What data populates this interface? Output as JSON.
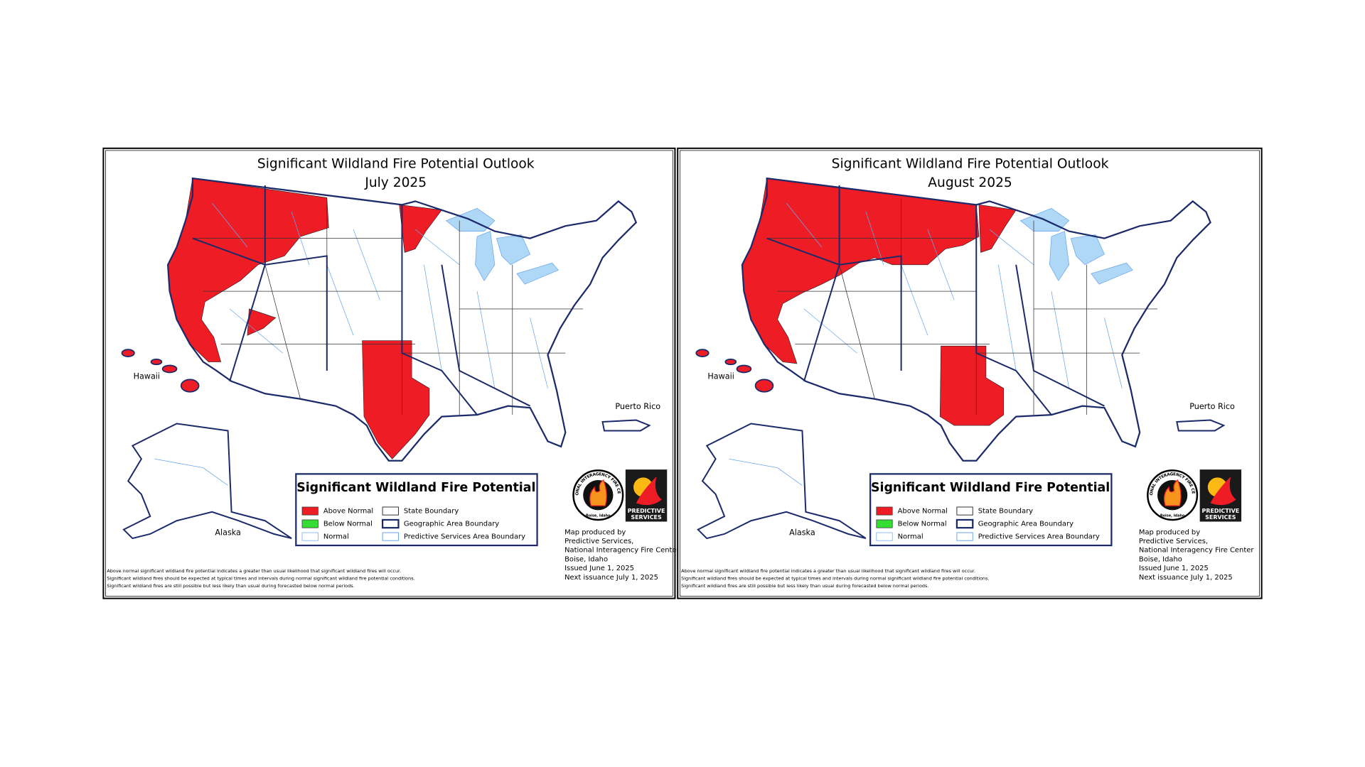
{
  "panels": [
    {
      "title": "Significant Wildland Fire Potential Outlook",
      "subtitle": "July 2025",
      "places": {
        "hawaii": "Hawaii",
        "alaska": "Alaska",
        "puerto_rico": "Puerto Rico"
      },
      "legend": {
        "title": "Significant Wildland Fire Potential",
        "items": [
          "Above Normal",
          "Below Normal",
          "Normal",
          "State Boundary",
          "Geographic Area Boundary",
          "Predictive Services Area Boundary"
        ]
      },
      "logos": {
        "nifc": "NATIONAL INTERAGENCY FIRE CENTER",
        "nifc_city": "Boise, Idaho",
        "ps": [
          "PREDICTIVE",
          "SERVICES"
        ]
      },
      "credits": [
        "Map produced by",
        "Predictive Services,",
        "National Interagency Fire Center",
        "Boise, Idaho",
        "Issued June 1, 2025",
        "Next issuance July 1, 2025"
      ],
      "footnotes": [
        "Above normal significant wildland fire potential indicates a greater than usual likelihood that significant wildland fires will occur.",
        "Significant wildland fires should be expected at typical times and intervals during normal significant wildland fire potential conditions.",
        "Significant wildland fires are still possible but less likely than usual during forecasted below normal periods."
      ]
    },
    {
      "title": "Significant Wildland Fire Potential Outlook",
      "subtitle": "August 2025",
      "places": {
        "hawaii": "Hawaii",
        "alaska": "Alaska",
        "puerto_rico": "Puerto Rico"
      },
      "legend": {
        "title": "Significant Wildland Fire Potential",
        "items": [
          "Above Normal",
          "Below Normal",
          "Normal",
          "State Boundary",
          "Geographic Area Boundary",
          "Predictive Services Area Boundary"
        ]
      },
      "logos": {
        "nifc": "NATIONAL INTERAGENCY FIRE CENTER",
        "nifc_city": "Boise, Idaho",
        "ps": [
          "PREDICTIVE",
          "SERVICES"
        ]
      },
      "credits": [
        "Map produced by",
        "Predictive Services,",
        "National Interagency Fire Center",
        "Boise, Idaho",
        "Issued June 1, 2025",
        "Next issuance July 1, 2025"
      ],
      "footnotes": [
        "Above normal significant wildland fire potential indicates a greater than usual likelihood that significant wildland fires will occur.",
        "Significant wildland fires should be expected at typical times and intervals during normal significant wildland fire potential conditions.",
        "Significant wildland fires are still possible but less likely than usual during forecasted below normal periods."
      ]
    }
  ]
}
